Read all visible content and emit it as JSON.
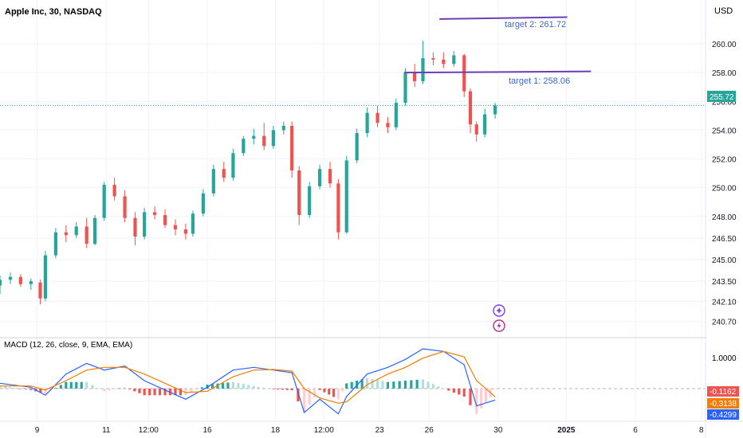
{
  "header": {
    "title": "Apple Inc, 30, NASDAQ"
  },
  "currency_label": "USD",
  "last_price": {
    "value": 255.72,
    "label": "255.72",
    "color": "#26a69a"
  },
  "annotations": [
    {
      "text": "target 2: 261.72",
      "price": 261.72,
      "color": "#3b68c9"
    },
    {
      "text": "target 1: 258.06",
      "price": 258.06,
      "color": "#3b68c9"
    }
  ],
  "trend_lines": [
    {
      "name": "upper-target-line",
      "from": {
        "x": 42.6,
        "y": 261.72
      },
      "to": {
        "x": 55.0,
        "y": 261.85
      },
      "color": "#6a3fb5"
    },
    {
      "name": "lower-target-line",
      "from": {
        "x": 39.2,
        "y": 258.0
      },
      "to": {
        "x": 57.3,
        "y": 258.08
      },
      "color": "#6a3fb5"
    }
  ],
  "price_axis": {
    "ticks": [
      "260.00",
      "258.00",
      "256.00",
      "254.00",
      "252.00",
      "250.00",
      "248.00",
      "246.50",
      "245.00",
      "243.50",
      "242.10",
      "240.70"
    ],
    "tick_values": [
      260.0,
      258.0,
      256.0,
      254.0,
      252.0,
      250.0,
      248.0,
      246.5,
      245.0,
      243.5,
      242.1,
      240.7
    ]
  },
  "time_axis": {
    "labels": [
      "9",
      "11",
      "12:00",
      "16",
      "18",
      "12:00",
      "23",
      "26",
      "30",
      "2025",
      "6",
      "8"
    ],
    "positions": [
      3.6,
      10.3,
      14.4,
      20.1,
      26.7,
      31.4,
      36.8,
      41.6,
      48.3,
      54.9,
      61.6,
      68.0
    ],
    "bold": [
      false,
      false,
      false,
      false,
      false,
      false,
      false,
      false,
      false,
      true,
      false,
      false
    ]
  },
  "macd": {
    "label": "MACD (12, 26, close, 9, EMA, EMA)",
    "axis_tick": "1.0000",
    "readouts": [
      {
        "label": "-0.1162",
        "value": -0.1162,
        "color": "#ef5350"
      },
      {
        "label": "-0.3138",
        "value": -0.3138,
        "color": "#f57c00"
      },
      {
        "label": "-0.4299",
        "value": -0.4299,
        "color": "#2962ff"
      }
    ]
  },
  "icons": [
    {
      "name": "plus-circle-icon",
      "color": "#7b3fe4"
    },
    {
      "name": "lightning-circle-icon",
      "color": "#b02c9b"
    }
  ],
  "chart_data": {
    "type": "candlestick",
    "title": "Apple Inc, 30, NASDAQ",
    "y_unit": "USD",
    "ylim": [
      239.8,
      262.6
    ],
    "xlim": [
      0,
      68.4
    ],
    "grid": true,
    "up_color": "#26a69a",
    "down_color": "#ef5350",
    "candles": [
      [
        0,
        243.2,
        243.9,
        242.6,
        243.6
      ],
      [
        1,
        243.6,
        244.1,
        243.3,
        243.8
      ],
      [
        2,
        243.8,
        244.0,
        243.1,
        243.3
      ],
      [
        3,
        243.3,
        243.7,
        242.9,
        243.5
      ],
      [
        3.9,
        243.4,
        243.6,
        241.9,
        242.3
      ],
      [
        4.4,
        242.3,
        245.6,
        242.1,
        245.3
      ],
      [
        5.4,
        245.3,
        247.2,
        245.1,
        246.9
      ],
      [
        6.4,
        246.9,
        247.4,
        246.2,
        246.7
      ],
      [
        7.4,
        246.7,
        247.6,
        246.5,
        247.3
      ],
      [
        8.4,
        247.3,
        247.9,
        245.8,
        246.1
      ],
      [
        9.2,
        246.1,
        248.1,
        246.0,
        247.9
      ],
      [
        10.1,
        247.9,
        250.4,
        247.7,
        250.2
      ],
      [
        11.1,
        250.2,
        250.7,
        249.1,
        249.4
      ],
      [
        12.1,
        249.4,
        249.8,
        247.6,
        247.9
      ],
      [
        13.1,
        247.9,
        248.3,
        246.0,
        246.6
      ],
      [
        14.0,
        246.6,
        248.6,
        246.4,
        248.3
      ],
      [
        15.0,
        248.3,
        248.7,
        247.8,
        248.1
      ],
      [
        16.0,
        248.1,
        248.5,
        247.2,
        247.4
      ],
      [
        17.0,
        247.4,
        247.8,
        246.7,
        247.1
      ],
      [
        18.0,
        247.1,
        247.5,
        246.4,
        246.8
      ],
      [
        18.7,
        246.8,
        248.4,
        246.6,
        248.2
      ],
      [
        19.7,
        248.2,
        249.9,
        248.0,
        249.6
      ],
      [
        20.7,
        249.6,
        251.6,
        249.4,
        251.3
      ],
      [
        21.7,
        251.3,
        251.8,
        250.4,
        250.7
      ],
      [
        22.6,
        250.7,
        252.7,
        250.5,
        252.4
      ],
      [
        23.6,
        252.4,
        253.6,
        252.2,
        253.4
      ],
      [
        24.6,
        253.4,
        254.1,
        253.0,
        253.6
      ],
      [
        25.6,
        253.6,
        254.5,
        252.6,
        252.9
      ],
      [
        26.5,
        252.9,
        254.3,
        252.7,
        254.0
      ],
      [
        27.5,
        254.0,
        254.6,
        253.7,
        254.3
      ],
      [
        28.3,
        254.3,
        254.6,
        250.7,
        251.2
      ],
      [
        29.0,
        251.2,
        251.5,
        247.4,
        248.1
      ],
      [
        30.0,
        248.1,
        250.4,
        247.9,
        250.1
      ],
      [
        31.0,
        250.1,
        251.6,
        249.9,
        251.3
      ],
      [
        32.0,
        251.3,
        251.8,
        250.0,
        250.3
      ],
      [
        32.8,
        250.3,
        250.6,
        246.4,
        246.9
      ],
      [
        33.6,
        246.9,
        252.2,
        246.8,
        251.9
      ],
      [
        34.6,
        251.9,
        254.1,
        251.7,
        253.8
      ],
      [
        35.6,
        253.8,
        255.6,
        253.5,
        255.2
      ],
      [
        36.6,
        255.2,
        255.7,
        254.2,
        254.5
      ],
      [
        37.6,
        254.5,
        254.9,
        253.8,
        254.2
      ],
      [
        38.4,
        254.2,
        256.2,
        254.0,
        255.9
      ],
      [
        39.3,
        255.9,
        258.3,
        255.7,
        258.0
      ],
      [
        40.2,
        258.0,
        258.6,
        257.0,
        257.4
      ],
      [
        41.0,
        257.4,
        260.2,
        257.2,
        259.0
      ],
      [
        42.0,
        259.0,
        259.4,
        258.5,
        258.9
      ],
      [
        43.0,
        258.9,
        259.4,
        258.3,
        258.6
      ],
      [
        44.0,
        258.6,
        259.5,
        258.4,
        259.2
      ],
      [
        45.0,
        259.2,
        259.3,
        256.3,
        256.7
      ],
      [
        45.6,
        256.7,
        256.9,
        253.8,
        254.4
      ],
      [
        46.2,
        254.4,
        254.6,
        253.2,
        253.7
      ],
      [
        47.0,
        253.7,
        255.5,
        253.5,
        255.1
      ],
      [
        48.0,
        255.1,
        255.9,
        254.8,
        255.72
      ]
    ],
    "macd_series": [
      {
        "name": "MACD",
        "x": [
          0,
          3,
          4.4,
          6.4,
          8.4,
          10.1,
          12.1,
          14.0,
          16.0,
          18.0,
          20.1,
          22.6,
          24.6,
          26.5,
          28.3,
          29.5,
          31.0,
          32.8,
          33.6,
          35.6,
          37.6,
          39.3,
          41.0,
          43.0,
          45.0,
          46.2,
          48.0
        ],
        "values": [
          0.2,
          0.05,
          -0.25,
          0.55,
          0.95,
          0.7,
          0.85,
          0.3,
          -0.05,
          -0.4,
          0.05,
          0.7,
          0.8,
          0.7,
          0.6,
          -0.9,
          -0.4,
          -0.95,
          -0.3,
          0.55,
          0.8,
          1.1,
          1.5,
          1.4,
          0.9,
          -0.65,
          -0.43
        ]
      },
      {
        "name": "Signal",
        "x": [
          0,
          3,
          4.4,
          6.4,
          8.4,
          10.1,
          12.1,
          14.0,
          16.0,
          18.0,
          20.1,
          22.6,
          24.6,
          26.5,
          28.3,
          29.5,
          31.0,
          32.8,
          33.6,
          35.6,
          37.6,
          39.3,
          41.0,
          43.0,
          45.0,
          46.2,
          48.0
        ],
        "values": [
          0.1,
          0.1,
          -0.05,
          0.3,
          0.7,
          0.8,
          0.8,
          0.55,
          0.2,
          -0.15,
          -0.1,
          0.45,
          0.7,
          0.72,
          0.66,
          0.0,
          -0.35,
          -0.55,
          -0.5,
          0.15,
          0.55,
          0.8,
          1.15,
          1.4,
          1.2,
          0.3,
          -0.31
        ]
      },
      {
        "name": "Histogram",
        "x": [
          0,
          3,
          4.4,
          6.4,
          8.4,
          10.1,
          12.1,
          14.0,
          16.0,
          18.0,
          20.1,
          22.6,
          24.6,
          26.5,
          28.3,
          29.5,
          31.0,
          32.8,
          33.6,
          35.6,
          37.6,
          39.3,
          41.0,
          43.0,
          45.0,
          46.2,
          48.0
        ],
        "values": [
          0.1,
          -0.05,
          -0.2,
          0.25,
          0.25,
          -0.1,
          0.05,
          -0.25,
          -0.25,
          -0.25,
          0.15,
          0.25,
          0.1,
          -0.02,
          -0.06,
          -0.9,
          -0.05,
          -0.4,
          0.2,
          0.4,
          0.25,
          0.3,
          0.35,
          0.0,
          -0.3,
          -0.95,
          -0.12
        ]
      }
    ],
    "macd_ylim": [
      -1.2,
      1.8
    ]
  }
}
